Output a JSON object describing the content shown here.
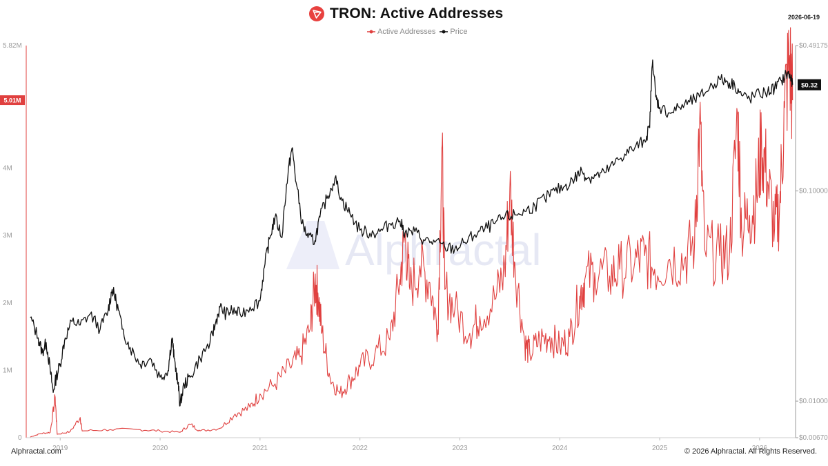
{
  "header": {
    "title": "TRON: Active Addresses",
    "date": "2026-06-19",
    "logo_icon": "tron-logo-icon"
  },
  "legend": {
    "items": [
      {
        "label": "Active Addresses",
        "color": "#e0403f"
      },
      {
        "label": "Price",
        "color": "#111111"
      }
    ]
  },
  "footer": {
    "brand": "Alphractal.com",
    "copyright": "© 2026 Alphractal. All Rights Reserved."
  },
  "watermark": "Alphractal",
  "colors": {
    "active": "#e0403f",
    "price": "#111111",
    "accent": "#e8413f"
  },
  "chart_data": {
    "type": "line",
    "title": "TRON: Active Addresses",
    "x_ticks": [
      "2019",
      "2020",
      "2021",
      "2022",
      "2023",
      "2024",
      "2025",
      "2026"
    ],
    "y_left": {
      "ticks": [
        "1M",
        "2M",
        "3M",
        "4M",
        "5.82M"
      ],
      "tick_values": [
        1000000,
        2000000,
        3000000,
        4000000,
        5820000
      ],
      "range": [
        0,
        5820000
      ]
    },
    "y_right": {
      "scale": "log",
      "ticks": [
        "$0.00670",
        "$0.01000",
        "$0.10000",
        "$0.49175"
      ],
      "tick_values": [
        0.0067,
        0.01,
        0.1,
        0.49175
      ],
      "range": [
        0.0067,
        0.49175
      ]
    },
    "current_labels": {
      "active": "5.01M",
      "price": "$0.32"
    },
    "series": [
      {
        "name": "Active Addresses",
        "axis": "left",
        "color": "#e0403f",
        "points": [
          [
            2018.7,
            10000
          ],
          [
            2018.8,
            60000
          ],
          [
            2018.9,
            80000
          ],
          [
            2018.95,
            600000
          ],
          [
            2018.97,
            50000
          ],
          [
            2019.1,
            90000
          ],
          [
            2019.2,
            300000
          ],
          [
            2019.22,
            100000
          ],
          [
            2019.5,
            120000
          ],
          [
            2019.8,
            120000
          ],
          [
            2020.0,
            100000
          ],
          [
            2020.2,
            80000
          ],
          [
            2020.3,
            200000
          ],
          [
            2020.4,
            100000
          ],
          [
            2020.6,
            140000
          ],
          [
            2020.75,
            350000
          ],
          [
            2020.9,
            450000
          ],
          [
            2021.0,
            650000
          ],
          [
            2021.15,
            800000
          ],
          [
            2021.3,
            1050000
          ],
          [
            2021.4,
            1200000
          ],
          [
            2021.5,
            1600000
          ],
          [
            2021.55,
            2300000
          ],
          [
            2021.58,
            2150000
          ],
          [
            2021.62,
            1550000
          ],
          [
            2021.7,
            900000
          ],
          [
            2021.8,
            650000
          ],
          [
            2021.9,
            850000
          ],
          [
            2022.0,
            1050000
          ],
          [
            2022.15,
            1250000
          ],
          [
            2022.3,
            1450000
          ],
          [
            2022.4,
            2350000
          ],
          [
            2022.45,
            3000000
          ],
          [
            2022.5,
            2200000
          ],
          [
            2022.6,
            2550000
          ],
          [
            2022.7,
            2300000
          ],
          [
            2022.78,
            1600000
          ],
          [
            2022.82,
            4300000
          ],
          [
            2022.85,
            2200000
          ],
          [
            2022.95,
            1900000
          ],
          [
            2023.1,
            1550000
          ],
          [
            2023.2,
            1800000
          ],
          [
            2023.35,
            2050000
          ],
          [
            2023.45,
            2500000
          ],
          [
            2023.5,
            3700000
          ],
          [
            2023.55,
            2600000
          ],
          [
            2023.65,
            1400000
          ],
          [
            2023.7,
            1250000
          ],
          [
            2023.8,
            1450000
          ],
          [
            2023.9,
            1500000
          ],
          [
            2024.0,
            1350000
          ],
          [
            2024.1,
            1500000
          ],
          [
            2024.2,
            2100000
          ],
          [
            2024.25,
            2350000
          ],
          [
            2024.35,
            2450000
          ],
          [
            2024.5,
            2400000
          ],
          [
            2024.6,
            2500000
          ],
          [
            2024.75,
            2600000
          ],
          [
            2024.85,
            2700000
          ],
          [
            2024.95,
            2500000
          ],
          [
            2025.1,
            2650000
          ],
          [
            2025.25,
            2650000
          ],
          [
            2025.35,
            2900000
          ],
          [
            2025.4,
            4700000
          ],
          [
            2025.45,
            2800000
          ],
          [
            2025.6,
            2700000
          ],
          [
            2025.7,
            2750000
          ],
          [
            2025.78,
            4800000
          ],
          [
            2025.82,
            3100000
          ],
          [
            2025.9,
            3300000
          ],
          [
            2025.97,
            3600000
          ],
          [
            2026.02,
            4400000
          ],
          [
            2026.08,
            3800000
          ],
          [
            2026.15,
            3100000
          ],
          [
            2026.2,
            3400000
          ],
          [
            2026.25,
            4900000
          ],
          [
            2026.3,
            5600000
          ],
          [
            2026.33,
            5010000
          ]
        ]
      },
      {
        "name": "Price",
        "axis": "right",
        "color": "#111111",
        "points": [
          [
            2018.7,
            0.025
          ],
          [
            2018.78,
            0.02
          ],
          [
            2018.82,
            0.017
          ],
          [
            2018.86,
            0.019
          ],
          [
            2018.9,
            0.014
          ],
          [
            2018.93,
            0.011
          ],
          [
            2018.96,
            0.013
          ],
          [
            2019.0,
            0.015
          ],
          [
            2019.05,
            0.02
          ],
          [
            2019.12,
            0.024
          ],
          [
            2019.2,
            0.023
          ],
          [
            2019.3,
            0.026
          ],
          [
            2019.4,
            0.022
          ],
          [
            2019.48,
            0.027
          ],
          [
            2019.52,
            0.034
          ],
          [
            2019.56,
            0.03
          ],
          [
            2019.62,
            0.022
          ],
          [
            2019.7,
            0.018
          ],
          [
            2019.8,
            0.015
          ],
          [
            2019.9,
            0.016
          ],
          [
            2020.0,
            0.013
          ],
          [
            2020.08,
            0.014
          ],
          [
            2020.12,
            0.02
          ],
          [
            2020.14,
            0.016
          ],
          [
            2020.18,
            0.012
          ],
          [
            2020.2,
            0.0095
          ],
          [
            2020.24,
            0.012
          ],
          [
            2020.3,
            0.013
          ],
          [
            2020.4,
            0.016
          ],
          [
            2020.5,
            0.019
          ],
          [
            2020.55,
            0.023
          ],
          [
            2020.6,
            0.028
          ],
          [
            2020.66,
            0.026
          ],
          [
            2020.72,
            0.027
          ],
          [
            2020.8,
            0.026
          ],
          [
            2020.9,
            0.028
          ],
          [
            2021.0,
            0.03
          ],
          [
            2021.05,
            0.045
          ],
          [
            2021.1,
            0.06
          ],
          [
            2021.15,
            0.075
          ],
          [
            2021.22,
            0.06
          ],
          [
            2021.28,
            0.12
          ],
          [
            2021.32,
            0.16
          ],
          [
            2021.36,
            0.11
          ],
          [
            2021.42,
            0.07
          ],
          [
            2021.48,
            0.06
          ],
          [
            2021.55,
            0.058
          ],
          [
            2021.6,
            0.075
          ],
          [
            2021.68,
            0.095
          ],
          [
            2021.75,
            0.115
          ],
          [
            2021.82,
            0.09
          ],
          [
            2021.9,
            0.078
          ],
          [
            2022.0,
            0.065
          ],
          [
            2022.1,
            0.063
          ],
          [
            2022.2,
            0.064
          ],
          [
            2022.3,
            0.07
          ],
          [
            2022.4,
            0.072
          ],
          [
            2022.45,
            0.063
          ],
          [
            2022.55,
            0.064
          ],
          [
            2022.65,
            0.058
          ],
          [
            2022.75,
            0.057
          ],
          [
            2022.85,
            0.054
          ],
          [
            2022.95,
            0.053
          ],
          [
            2023.05,
            0.057
          ],
          [
            2023.15,
            0.062
          ],
          [
            2023.25,
            0.066
          ],
          [
            2023.35,
            0.07
          ],
          [
            2023.45,
            0.075
          ],
          [
            2023.55,
            0.077
          ],
          [
            2023.65,
            0.08
          ],
          [
            2023.75,
            0.085
          ],
          [
            2023.85,
            0.092
          ],
          [
            2023.95,
            0.1
          ],
          [
            2024.05,
            0.105
          ],
          [
            2024.15,
            0.115
          ],
          [
            2024.22,
            0.125
          ],
          [
            2024.28,
            0.115
          ],
          [
            2024.36,
            0.118
          ],
          [
            2024.45,
            0.122
          ],
          [
            2024.55,
            0.135
          ],
          [
            2024.65,
            0.15
          ],
          [
            2024.75,
            0.16
          ],
          [
            2024.85,
            0.175
          ],
          [
            2024.9,
            0.2
          ],
          [
            2024.93,
            0.42
          ],
          [
            2024.96,
            0.28
          ],
          [
            2025.0,
            0.25
          ],
          [
            2025.1,
            0.235
          ],
          [
            2025.2,
            0.25
          ],
          [
            2025.3,
            0.265
          ],
          [
            2025.4,
            0.28
          ],
          [
            2025.5,
            0.31
          ],
          [
            2025.6,
            0.34
          ],
          [
            2025.68,
            0.33
          ],
          [
            2025.75,
            0.32
          ],
          [
            2025.82,
            0.285
          ],
          [
            2025.9,
            0.275
          ],
          [
            2026.0,
            0.29
          ],
          [
            2026.08,
            0.295
          ],
          [
            2026.15,
            0.31
          ],
          [
            2026.22,
            0.335
          ],
          [
            2026.28,
            0.365
          ],
          [
            2026.31,
            0.345
          ],
          [
            2026.33,
            0.32
          ]
        ]
      }
    ]
  }
}
